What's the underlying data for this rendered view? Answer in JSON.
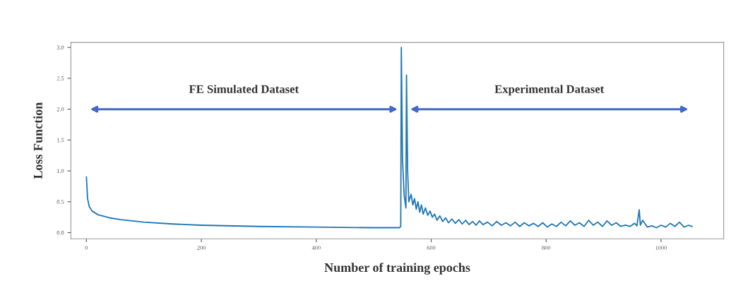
{
  "chart_data": {
    "type": "line",
    "xlabel": "Number of training epochs",
    "ylabel": "Loss Function",
    "xlim": [
      -27,
      1109
    ],
    "ylim": [
      -0.1,
      3.08
    ],
    "xticks": [
      0,
      200,
      400,
      600,
      800,
      1000
    ],
    "yticks": [
      {
        "value": 0,
        "label": "0.0"
      },
      {
        "value": 0.5,
        "label": "0.5"
      },
      {
        "value": 1,
        "label": "1.0"
      },
      {
        "value": 1.5,
        "label": "1.5"
      },
      {
        "value": 2,
        "label": "2.0"
      },
      {
        "value": 2.5,
        "label": "2.5"
      },
      {
        "value": 3,
        "label": "3.0"
      }
    ],
    "grid": false,
    "annotations": [
      "FE Simulated Dataset",
      "Experimental Dataset"
    ],
    "series": [
      {
        "color": "#1f77b4",
        "x": [
          0,
          2,
          5,
          10,
          20,
          40,
          60,
          100,
          150,
          200,
          300,
          400,
          500,
          545,
          547,
          548,
          550,
          553,
          556,
          557,
          559,
          561,
          565,
          568,
          571,
          574,
          577,
          580,
          583,
          586,
          590,
          594,
          598,
          602,
          606,
          610,
          615,
          620,
          625,
          630,
          636,
          642,
          648,
          654,
          660,
          666,
          672,
          678,
          684,
          690,
          698,
          706,
          714,
          722,
          730,
          738,
          746,
          754,
          762,
          770,
          778,
          786,
          794,
          802,
          810,
          818,
          826,
          834,
          842,
          850,
          858,
          866,
          874,
          882,
          890,
          898,
          906,
          914,
          922,
          930,
          938,
          946,
          954,
          958,
          962,
          964,
          968,
          976,
          984,
          992,
          1000,
          1008,
          1016,
          1024,
          1032,
          1040,
          1048,
          1054
        ],
        "values": [
          0.9,
          0.55,
          0.42,
          0.35,
          0.29,
          0.24,
          0.21,
          0.17,
          0.14,
          0.12,
          0.1,
          0.09,
          0.08,
          0.08,
          0.1,
          3.0,
          1.2,
          0.6,
          0.4,
          2.55,
          1.0,
          0.5,
          0.62,
          0.45,
          0.55,
          0.38,
          0.5,
          0.33,
          0.45,
          0.3,
          0.4,
          0.28,
          0.35,
          0.25,
          0.3,
          0.2,
          0.27,
          0.18,
          0.24,
          0.16,
          0.22,
          0.15,
          0.21,
          0.14,
          0.2,
          0.13,
          0.18,
          0.12,
          0.19,
          0.13,
          0.17,
          0.11,
          0.18,
          0.12,
          0.16,
          0.11,
          0.17,
          0.1,
          0.16,
          0.11,
          0.15,
          0.1,
          0.16,
          0.09,
          0.14,
          0.1,
          0.17,
          0.11,
          0.19,
          0.12,
          0.16,
          0.1,
          0.2,
          0.12,
          0.17,
          0.1,
          0.19,
          0.12,
          0.16,
          0.1,
          0.12,
          0.1,
          0.15,
          0.11,
          0.37,
          0.12,
          0.2,
          0.09,
          0.11,
          0.08,
          0.12,
          0.09,
          0.15,
          0.1,
          0.17,
          0.09,
          0.12,
          0.1
        ]
      }
    ]
  }
}
